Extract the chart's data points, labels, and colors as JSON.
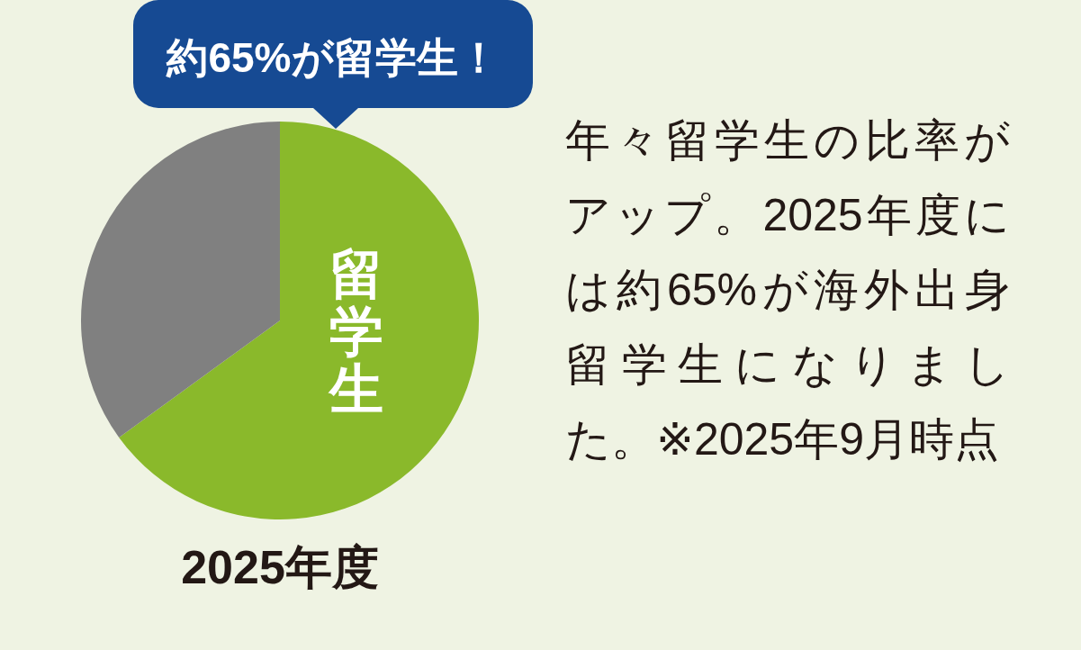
{
  "chart_data": {
    "type": "pie",
    "title": "2025年度",
    "categories": [
      "留学生",
      null
    ],
    "values": [
      65,
      35
    ],
    "colors": [
      "#8ab92b",
      "#808080"
    ],
    "annotations": [
      "約65%が留学生！",
      "年々留学生の比率がアップ。2025年度には約65%が海外出身留学生になりました。※2025年9月時点"
    ]
  }
}
